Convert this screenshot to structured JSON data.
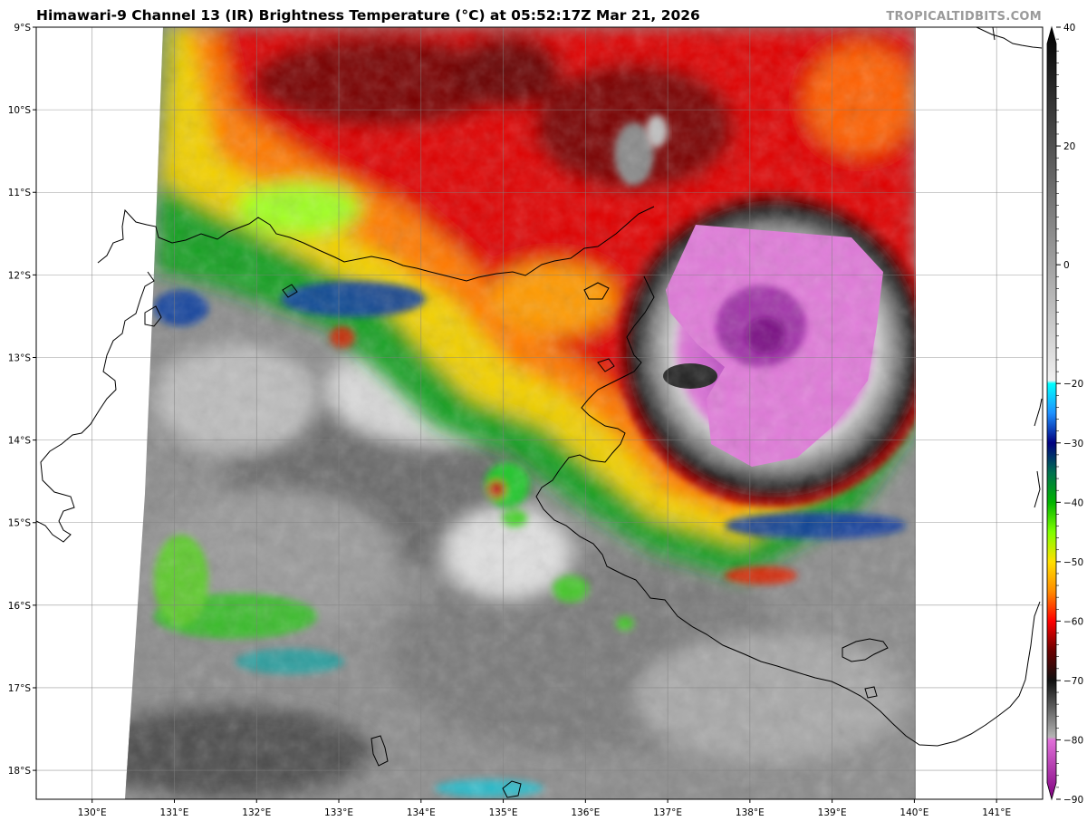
{
  "title": "Himawari-9 Channel 13 (IR) Brightness Temperature (°C) at 05:52:17Z Mar 21, 2026",
  "credit": "TROPICALTIDBITS.COM",
  "map": {
    "lat_labels": [
      "9°S",
      "10°S",
      "11°S",
      "12°S",
      "13°S",
      "14°S",
      "15°S",
      "16°S",
      "17°S",
      "18°S"
    ],
    "lon_labels": [
      "130°E",
      "131°E",
      "132°E",
      "133°E",
      "134°E",
      "135°E",
      "136°E",
      "137°E",
      "138°E",
      "139°E",
      "140°E",
      "141°E"
    ],
    "extent": {
      "lon_min": 129.32,
      "lon_max": 141.56,
      "lat_min": -18.35,
      "lat_max": -9.0
    },
    "storm_center": {
      "lon": 138.0,
      "lat": -12.8
    }
  },
  "colorbar": {
    "label_values": [
      "40",
      "20",
      "0",
      "−20",
      "−30",
      "−40",
      "−50",
      "−60",
      "−70",
      "−80",
      "−90"
    ],
    "range": [
      -90,
      40
    ],
    "stops": [
      {
        "t": -90,
        "color": "#7f007f"
      },
      {
        "t": -80,
        "color": "#e070d8"
      },
      {
        "t": -79.5,
        "color": "#b4b4b4"
      },
      {
        "t": -70,
        "color": "#101010"
      },
      {
        "t": -65,
        "color": "#6a0000"
      },
      {
        "t": -60,
        "color": "#ff0000"
      },
      {
        "t": -55,
        "color": "#ff8c00"
      },
      {
        "t": -50,
        "color": "#ffe000"
      },
      {
        "t": -45,
        "color": "#7fff00"
      },
      {
        "t": -40,
        "color": "#00b400"
      },
      {
        "t": -35,
        "color": "#007050"
      },
      {
        "t": -30,
        "color": "#000080"
      },
      {
        "t": -25,
        "color": "#1e90ff"
      },
      {
        "t": -20,
        "color": "#00ffff"
      },
      {
        "t": -19.5,
        "color": "#f0f0f0"
      },
      {
        "t": 40,
        "color": "#000000"
      }
    ]
  },
  "colors": {
    "grid": "#808080",
    "coast": "#000000",
    "credit": "#9a9a9a"
  }
}
